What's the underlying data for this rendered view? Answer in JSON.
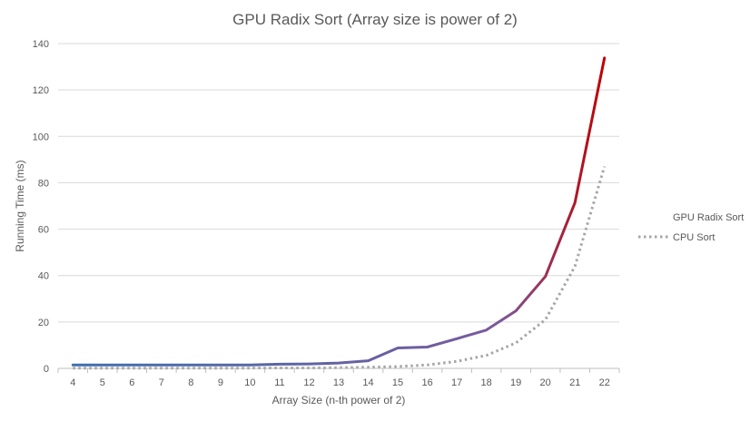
{
  "chart_data": {
    "type": "line",
    "title": "GPU Radix Sort (Array size is power of 2)",
    "xlabel": "Array Size (n-th power of 2)",
    "ylabel": "Running Time (ms)",
    "x": [
      4,
      5,
      6,
      7,
      8,
      9,
      10,
      11,
      12,
      13,
      14,
      15,
      16,
      17,
      18,
      19,
      20,
      21,
      22
    ],
    "ylim": [
      0,
      140
    ],
    "yticks": [
      0,
      20,
      40,
      60,
      80,
      100,
      120,
      140
    ],
    "grid": true,
    "legend_position": "right",
    "series": [
      {
        "name": "GPU Radix Sort",
        "style": "solid",
        "gradient_colors": [
          "#3d6fb0",
          "#7a5a9c",
          "#c00000"
        ],
        "values": [
          1.5,
          1.5,
          1.5,
          1.5,
          1.5,
          1.5,
          1.5,
          1.8,
          1.9,
          2.3,
          3.3,
          8.8,
          9.2,
          12.8,
          16.5,
          24.8,
          39.6,
          71.4,
          133.8
        ]
      },
      {
        "name": "CPU Sort",
        "style": "dotted",
        "color": "#a6a6a6",
        "values": [
          0.1,
          0.1,
          0.1,
          0.1,
          0.1,
          0.1,
          0.1,
          0.2,
          0.2,
          0.3,
          0.5,
          0.8,
          1.5,
          3.0,
          5.6,
          11.0,
          21.0,
          44.0,
          87.0
        ]
      }
    ]
  }
}
